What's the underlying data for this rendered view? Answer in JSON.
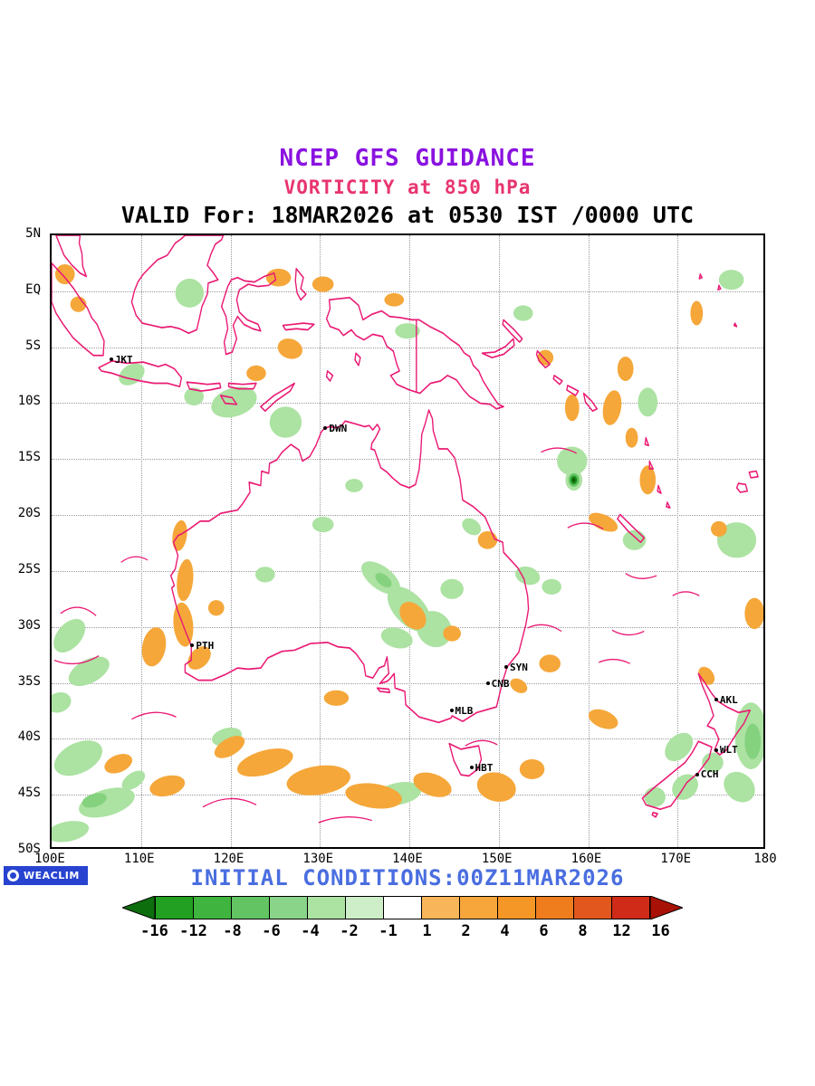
{
  "titles": {
    "line1": "NCEP GFS GUIDANCE",
    "line2": "VORTICITY at 850 hPa",
    "line3": "VALID For: 18MAR2026 at 0530 IST /0000 UTC"
  },
  "colors": {
    "title_purple": "#8a12e0",
    "title_pink": "#e8356f",
    "coastline_magenta": "#ea1a74",
    "footer_blue": "#4a6ee0",
    "logo_blue": "#2743cf",
    "shade_green": "#ace2a2",
    "shade_green_dark": "#84d27e",
    "shade_orange": "#f5a73a"
  },
  "axes": {
    "lat_ticks": [
      "5N",
      "EQ",
      "5S",
      "10S",
      "15S",
      "20S",
      "25S",
      "30S",
      "35S",
      "40S",
      "45S",
      "50S"
    ],
    "lon_ticks": [
      "100E",
      "110E",
      "120E",
      "130E",
      "140E",
      "150E",
      "160E",
      "170E",
      "180"
    ]
  },
  "map": {
    "cities": [
      {
        "label": "JKT"
      },
      {
        "label": "DWN"
      },
      {
        "label": "PTH"
      },
      {
        "label": "SYN"
      },
      {
        "label": "CNB"
      },
      {
        "label": "MLB"
      },
      {
        "label": "HBT"
      },
      {
        "label": "AKL"
      },
      {
        "label": "WLT"
      },
      {
        "label": "CCH"
      }
    ]
  },
  "footer": {
    "initial_conditions": "INITIAL CONDITIONS:00Z11MAR2026"
  },
  "logo": {
    "text": "WEACLIM"
  },
  "colorbar": {
    "tick_labels": [
      "-16",
      "-12",
      "-8",
      "-6",
      "-4",
      "-2",
      "-1",
      "1",
      "2",
      "4",
      "6",
      "8",
      "12",
      "16"
    ],
    "colors": [
      "#21a021",
      "#3fb43f",
      "#63c463",
      "#8ad48a",
      "#ace2a2",
      "#cdeec9",
      "#ffffff",
      "#f9b55a",
      "#f7a63c",
      "#f59726",
      "#ef7d1e",
      "#e2571d",
      "#cf2b18"
    ],
    "arrow_left_color": "#0d6e0d",
    "arrow_right_color": "#a81206"
  }
}
